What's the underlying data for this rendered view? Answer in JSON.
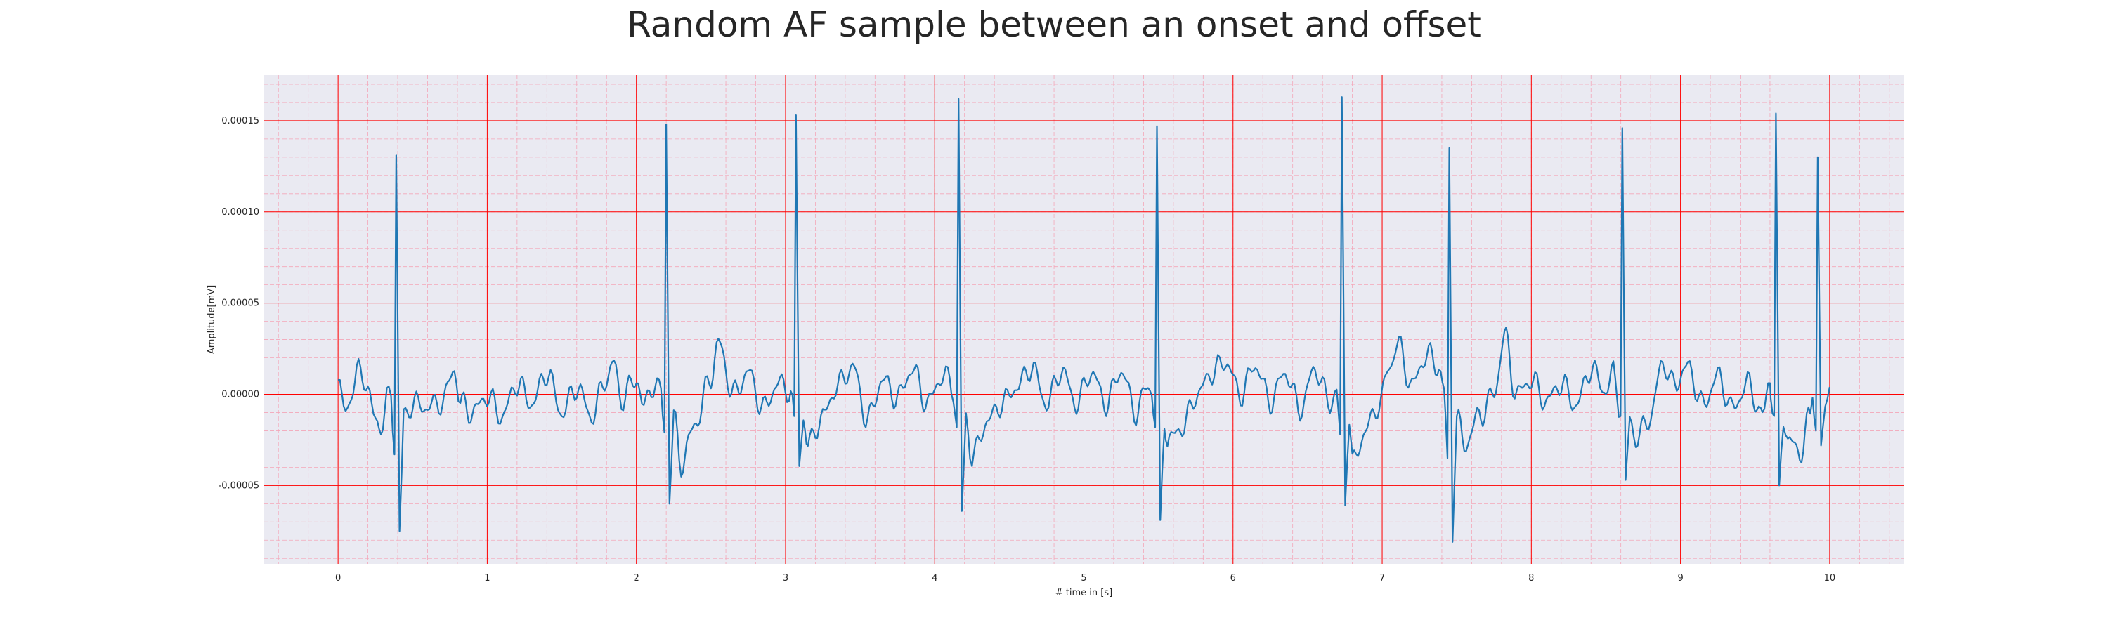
{
  "chart_data": {
    "type": "line",
    "title": "Random AF sample between an onset and offset",
    "xlabel": "# time in [s]",
    "ylabel": "Amplitude[mV]",
    "xlim": [
      -0.5,
      10.5
    ],
    "ylim": [
      -9.3e-05,
      0.000175
    ],
    "x_ticks": [
      0,
      1,
      2,
      3,
      4,
      5,
      6,
      7,
      8,
      9,
      10
    ],
    "x_tick_labels": [
      "0",
      "1",
      "2",
      "3",
      "4",
      "5",
      "6",
      "7",
      "8",
      "9",
      "10"
    ],
    "y_ticks": [
      -5e-05,
      0.0,
      5e-05,
      0.0001,
      0.00015
    ],
    "y_tick_labels": [
      "-0.00005",
      "0.00000",
      "0.00005",
      "0.00010",
      "0.00015"
    ],
    "grid": true,
    "minor_grid": true,
    "colors": {
      "background": "#eaeaf2",
      "major_grid": "#ff0000",
      "minor_grid": "#f4a6b8",
      "line": "#1f77b4"
    },
    "series": [
      {
        "peaks": [
          {
            "x": 0.39,
            "y": 0.000131,
            "s": -3.3e-05,
            "d": -7.5e-05
          },
          {
            "x": 2.2,
            "y": 0.000148,
            "s": -2.1e-05,
            "d": -6e-05
          },
          {
            "x": 3.07,
            "y": 0.000153,
            "s": -1.2e-05,
            "d": -3.8e-05
          },
          {
            "x": 4.16,
            "y": 0.000162,
            "s": -1.8e-05,
            "d": -6.4e-05
          },
          {
            "x": 5.49,
            "y": 0.000147,
            "s": -1.8e-05,
            "d": -6.9e-05
          },
          {
            "x": 6.73,
            "y": 0.000163,
            "s": -2.2e-05,
            "d": -6.1e-05
          },
          {
            "x": 7.45,
            "y": 0.000135,
            "s": -3.5e-05,
            "d": -8.1e-05
          },
          {
            "x": 8.61,
            "y": 0.000146,
            "s": -1.2e-05,
            "d": -4.7e-05
          },
          {
            "x": 9.64,
            "y": 0.000154,
            "s": -1.2e-05,
            "d": -5e-05
          },
          {
            "x": 9.92,
            "y": 0.00013,
            "s": -2e-05,
            "d": -2.8e-05
          }
        ],
        "baseline": [
          [
            0.0,
            5e-06
          ],
          [
            0.05,
            -9e-06
          ],
          [
            0.1,
            3e-06
          ],
          [
            0.15,
            1.5e-05
          ],
          [
            0.2,
            2e-06
          ],
          [
            0.25,
            -1.5e-05
          ],
          [
            0.3,
            -1.6e-05
          ],
          [
            0.34,
            0.0
          ],
          [
            0.5,
            -5e-06
          ],
          [
            0.6,
            -7e-06
          ],
          [
            0.7,
            -4e-06
          ],
          [
            0.78,
            1.4e-05
          ],
          [
            0.82,
            -5e-06
          ],
          [
            0.9,
            -1e-05
          ],
          [
            1.0,
            -1e-06
          ],
          [
            1.1,
            -1.2e-05
          ],
          [
            1.2,
            6e-06
          ],
          [
            1.3,
            -5e-06
          ],
          [
            1.4,
            1.2e-05
          ],
          [
            1.5,
            -1e-05
          ],
          [
            1.6,
            4e-06
          ],
          [
            1.7,
            -1.2e-05
          ],
          [
            1.8,
            9e-06
          ],
          [
            1.85,
            1.7e-05
          ],
          [
            1.9,
            -3e-06
          ],
          [
            2.0,
            9e-06
          ],
          [
            2.05,
            -8e-06
          ],
          [
            2.1,
            5e-06
          ],
          [
            2.3,
            -3.8e-05
          ],
          [
            2.4,
            -1.5e-05
          ],
          [
            2.5,
            1e-05
          ],
          [
            2.55,
            2.8e-05
          ],
          [
            2.65,
            0.0
          ],
          [
            2.75,
            1.2e-05
          ],
          [
            2.85,
            -8e-06
          ],
          [
            2.95,
            6e-06
          ],
          [
            3.15,
            -2.8e-05
          ],
          [
            3.25,
            -1.2e-05
          ],
          [
            3.35,
            5e-06
          ],
          [
            3.45,
            1.5e-05
          ],
          [
            3.55,
            -1.4e-05
          ],
          [
            3.65,
            8e-06
          ],
          [
            3.75,
            -2e-06
          ],
          [
            3.85,
            1.4e-05
          ],
          [
            3.95,
            -5e-06
          ],
          [
            4.05,
            1e-05
          ],
          [
            4.1,
            8e-06
          ],
          [
            4.25,
            -3.5e-05
          ],
          [
            4.35,
            -1.5e-05
          ],
          [
            4.45,
            -5e-06
          ],
          [
            4.55,
            4e-06
          ],
          [
            4.65,
            1.5e-05
          ],
          [
            4.75,
            -5e-06
          ],
          [
            4.85,
            1.3e-05
          ],
          [
            4.95,
            -5e-06
          ],
          [
            5.05,
            1.2e-05
          ],
          [
            5.15,
            -5e-06
          ],
          [
            5.25,
            1.3e-05
          ],
          [
            5.35,
            -1e-05
          ],
          [
            5.43,
            5e-06
          ],
          [
            5.56,
            -2.6e-05
          ],
          [
            5.66,
            -1.8e-05
          ],
          [
            5.76,
            0.0
          ],
          [
            5.86,
            1.2e-05
          ],
          [
            5.95,
            1.8e-05
          ],
          [
            6.05,
            0.0
          ],
          [
            6.15,
            1.6e-05
          ],
          [
            6.25,
            -4e-06
          ],
          [
            6.35,
            1.2e-05
          ],
          [
            6.45,
            -8e-06
          ],
          [
            6.55,
            1.4e-05
          ],
          [
            6.65,
            -5e-06
          ],
          [
            6.8,
            -3.8e-05
          ],
          [
            6.9,
            -1.8e-05
          ],
          [
            6.98,
            -5e-06
          ],
          [
            7.05,
            1.5e-05
          ],
          [
            7.1,
            2.8e-05
          ],
          [
            7.2,
            5e-06
          ],
          [
            7.3,
            2.2e-05
          ],
          [
            7.38,
            1.5e-05
          ],
          [
            7.55,
            -2.8e-05
          ],
          [
            7.65,
            -1.2e-05
          ],
          [
            7.75,
            0.0
          ],
          [
            7.82,
            3.2e-05
          ],
          [
            7.9,
            0.0
          ],
          [
            8.0,
            8e-06
          ],
          [
            8.1,
            -4e-06
          ],
          [
            8.2,
            6e-06
          ],
          [
            8.3,
            -6e-06
          ],
          [
            8.4,
            1.4e-05
          ],
          [
            8.5,
            2e-06
          ],
          [
            8.55,
            1.2e-05
          ],
          [
            8.7,
            -2.5e-05
          ],
          [
            8.8,
            -1.2e-05
          ],
          [
            8.88,
            1.8e-05
          ],
          [
            8.95,
            5e-06
          ],
          [
            9.05,
            1.5e-05
          ],
          [
            9.15,
            -6e-06
          ],
          [
            9.25,
            1e-05
          ],
          [
            9.35,
            -8e-06
          ],
          [
            9.45,
            6e-06
          ],
          [
            9.55,
            -1.2e-05
          ],
          [
            9.6,
            9e-06
          ],
          [
            9.72,
            -2.5e-05
          ],
          [
            9.8,
            -3.2e-05
          ],
          [
            9.87,
            -1.2e-05
          ],
          [
            9.96,
            2.8e-05
          ],
          [
            10.0,
            4e-06
          ]
        ]
      }
    ]
  }
}
